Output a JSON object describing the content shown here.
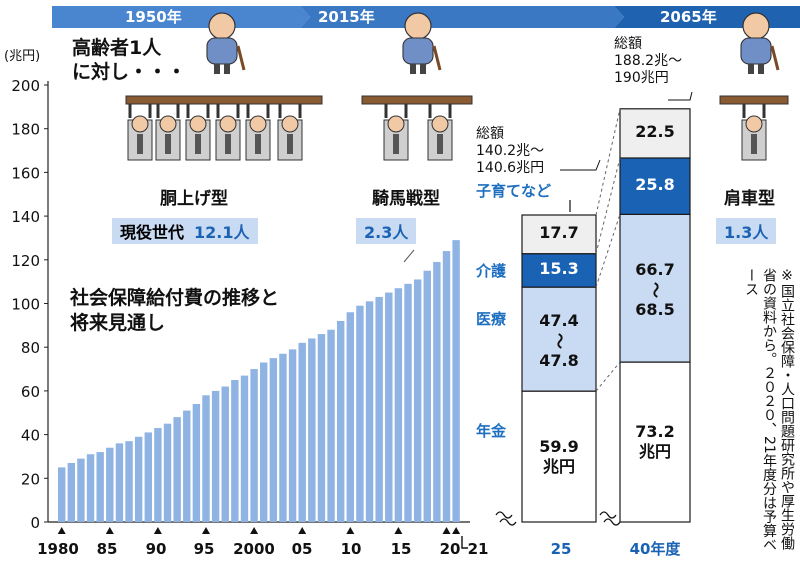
{
  "eras": [
    "1950年",
    "2015年",
    "2065年"
  ],
  "captions": {
    "lead_line1": "高齢者1人",
    "lead_line2": "に対し・・・",
    "title_line1": "社会保障給付費の推移と",
    "title_line2": "将来見通し",
    "type_1950": "胴上げ型",
    "type_2015": "騎馬戦型",
    "type_2065": "肩車型",
    "working_gen_label": "現役世代",
    "ratio_1950": "12.1人",
    "ratio_2015": "2.3人",
    "ratio_2065": "1.3人",
    "total_25_label": "総額",
    "total_25_line1": "140.2兆～",
    "total_25_line2": "140.6兆円",
    "total_40_label": "総額",
    "total_40_line1": "188.2兆～",
    "total_40_line2": "190兆円",
    "child_label": "子育てなど",
    "care_label": "介護",
    "medical_label": "医療",
    "pension_label": "年金",
    "source_note": "※国立社会保障・人口問題研究所や厚生労働省の資料から。２０２０、21年度分は予算ベース"
  },
  "icons": [
    "elderly-person-icon",
    "worker-figure-icon"
  ],
  "colors": {
    "bar_fill": "#8fb3e3",
    "accent_blue": "#1a62b4",
    "light_blue": "#c9dbf2",
    "pale_gray": "#efeff0",
    "axis_text": "#111111"
  },
  "chart_data": {
    "type": "bar",
    "ylabel": "(兆円)",
    "ylim": [
      0,
      200
    ],
    "yticks": [
      0,
      20,
      40,
      60,
      80,
      100,
      120,
      140,
      160,
      180,
      200
    ],
    "xtick_labels": [
      "1980",
      "85",
      "90",
      "95",
      "2000",
      "05",
      "10",
      "15",
      "20",
      "21",
      "25",
      "40年度"
    ],
    "years": [
      1980,
      1981,
      1982,
      1983,
      1984,
      1985,
      1986,
      1987,
      1988,
      1989,
      1990,
      1991,
      1992,
      1993,
      1994,
      1995,
      1996,
      1997,
      1998,
      1999,
      2000,
      2001,
      2002,
      2003,
      2004,
      2005,
      2006,
      2007,
      2008,
      2009,
      2010,
      2011,
      2012,
      2013,
      2014,
      2015,
      2016,
      2017,
      2018,
      2019,
      2020,
      2021
    ],
    "values": [
      25,
      27,
      29,
      31,
      32,
      34,
      36,
      37,
      39,
      41,
      43,
      45,
      48,
      51,
      54,
      58,
      60,
      62,
      65,
      67,
      70,
      73,
      75,
      77,
      79,
      82,
      84,
      86,
      88,
      92,
      96,
      99,
      101,
      103,
      105,
      107,
      109,
      111,
      115,
      119,
      124,
      129
    ],
    "forecast": [
      {
        "label": "25",
        "segments": [
          {
            "name": "年金",
            "value": 59.9,
            "text": "59.9",
            "unit": "兆円"
          },
          {
            "name": "医療",
            "value": 47.6,
            "text": "47.4～47.8"
          },
          {
            "name": "介護",
            "value": 15.3,
            "text": "15.3"
          },
          {
            "name": "子育てなど",
            "value": 17.7,
            "text": "17.7"
          }
        ]
      },
      {
        "label": "40年度",
        "segments": [
          {
            "name": "年金",
            "value": 73.2,
            "text": "73.2",
            "unit": "兆円"
          },
          {
            "name": "医療",
            "value": 67.6,
            "text": "66.7～68.5"
          },
          {
            "name": "介護",
            "value": 25.8,
            "text": "25.8"
          },
          {
            "name": "子育てなど",
            "value": 22.5,
            "text": "22.5"
          }
        ]
      }
    ]
  }
}
